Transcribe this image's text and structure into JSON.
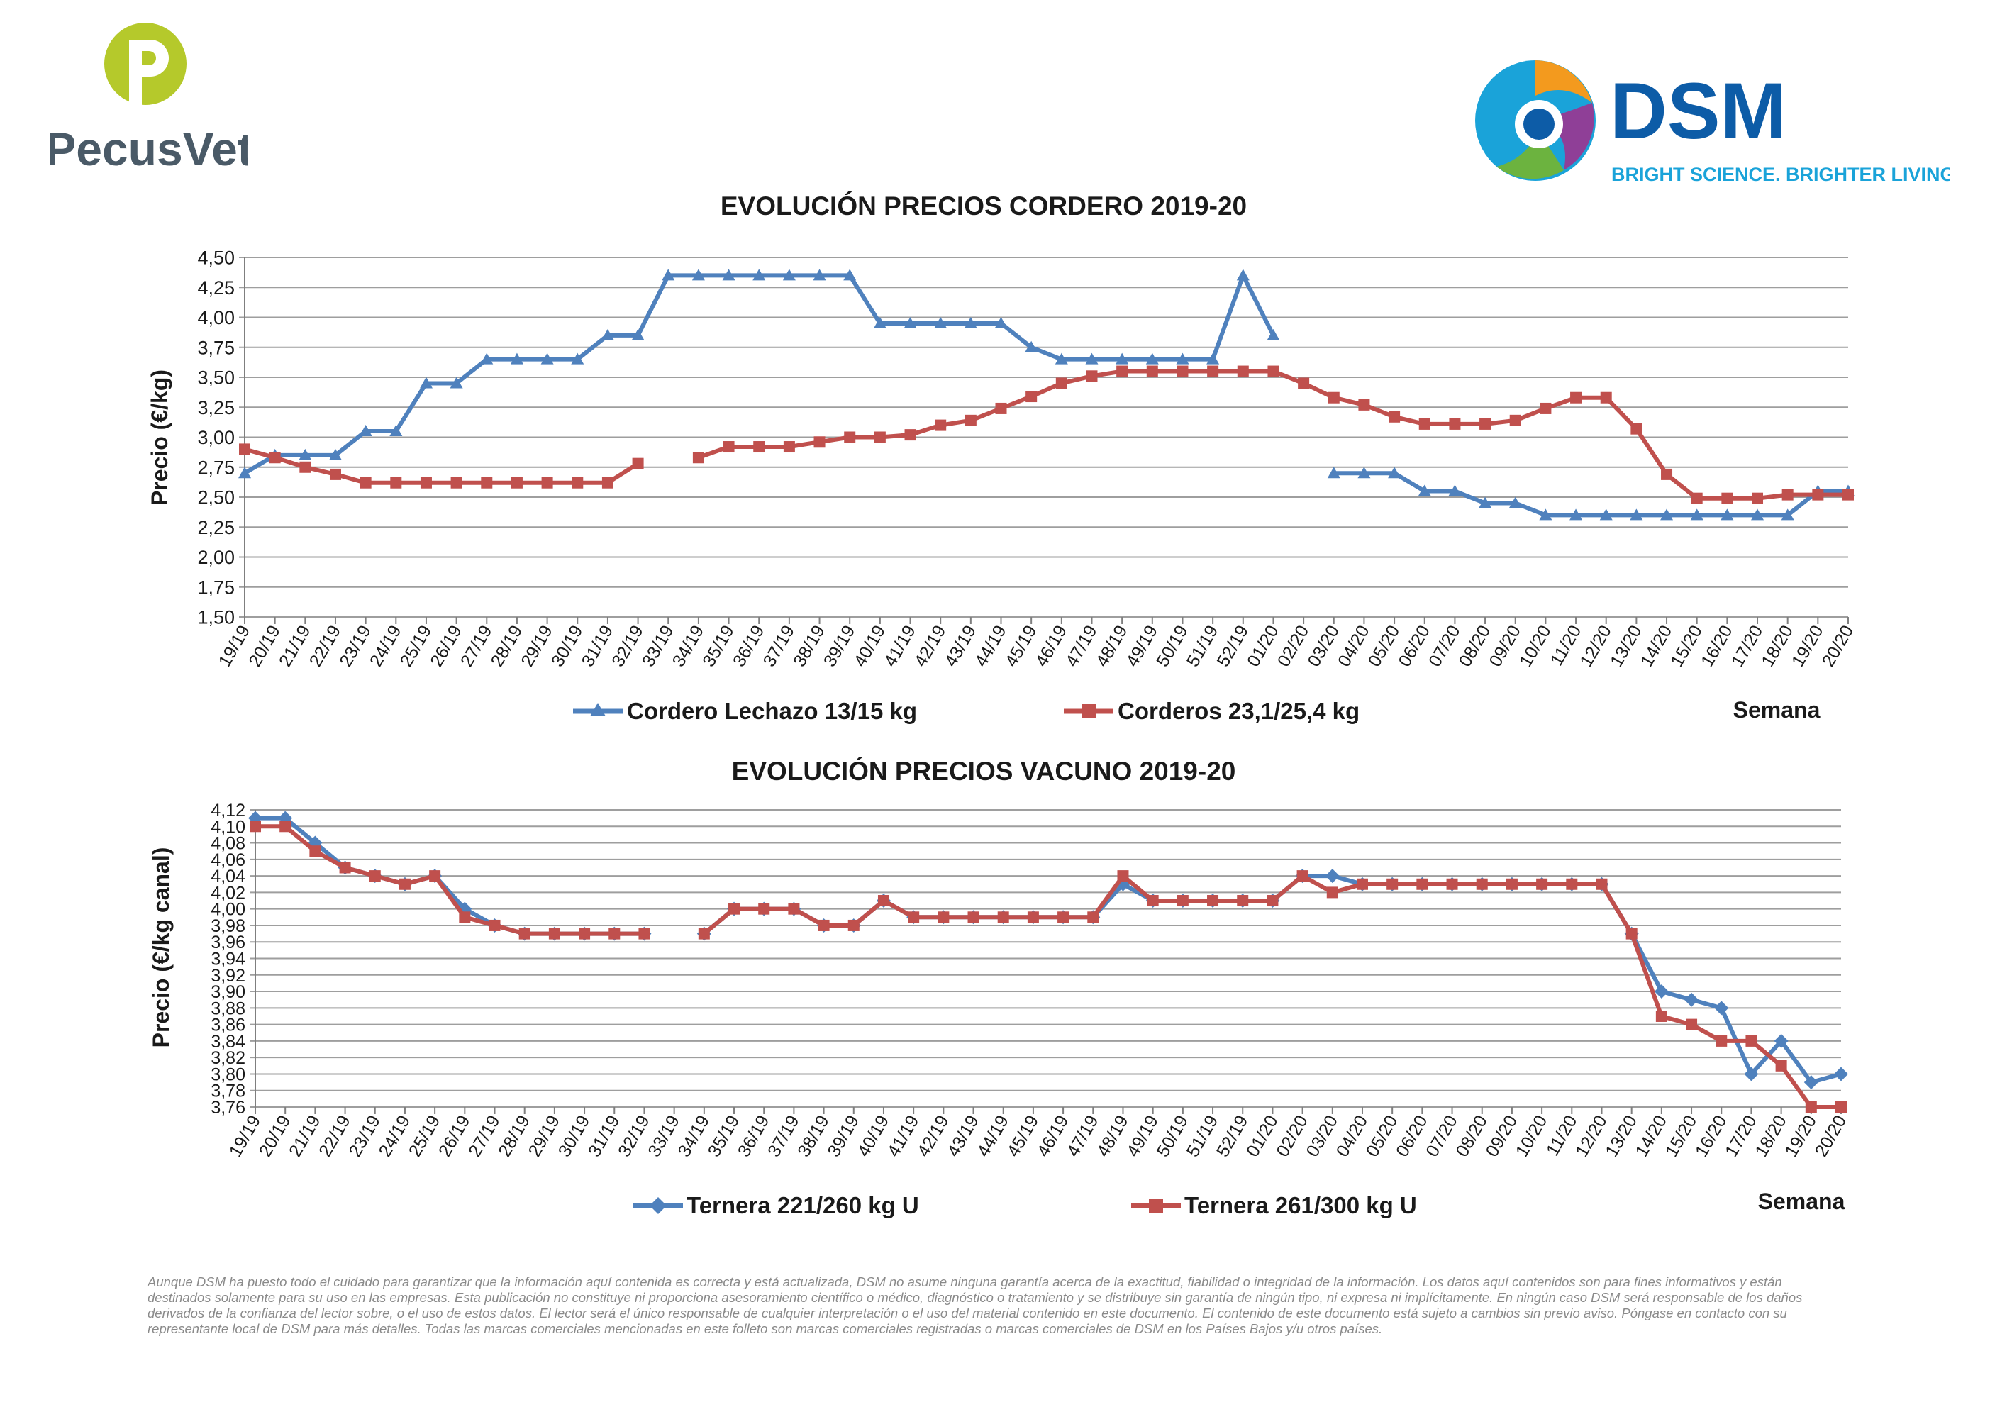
{
  "logos": {
    "left_brand": "PecusVet",
    "right_brand": "DSM",
    "right_tagline": "BRIGHT SCIENCE. BRIGHTER LIVING."
  },
  "colors": {
    "blue": "#4F81BD",
    "red": "#C0504D",
    "grid": "#9e9e9e",
    "logo_green": "#b5c92b",
    "logo_gray": "#4a5a67",
    "dsm_blue": "#0d5ca7"
  },
  "chart_data": [
    {
      "type": "line",
      "title": "EVOLUCIÓN PRECIOS CORDERO 2019-20",
      "xlabel": "Semana",
      "ylabel": "Precio (€/kg)",
      "ylim": [
        1.5,
        4.5
      ],
      "yticks": [
        "1,50",
        "1,75",
        "2,00",
        "2,25",
        "2,50",
        "2,75",
        "3,00",
        "3,25",
        "3,50",
        "3,75",
        "4,00",
        "4,25",
        "4,50"
      ],
      "grid": true,
      "legend_position": "bottom",
      "x": [
        "19/19",
        "20/19",
        "21/19",
        "22/19",
        "23/19",
        "24/19",
        "25/19",
        "26/19",
        "27/19",
        "28/19",
        "29/19",
        "30/19",
        "31/19",
        "32/19",
        "33/19",
        "34/19",
        "35/19",
        "36/19",
        "37/19",
        "38/19",
        "39/19",
        "40/19",
        "41/19",
        "42/19",
        "43/19",
        "44/19",
        "45/19",
        "46/19",
        "47/19",
        "48/19",
        "49/19",
        "50/19",
        "51/19",
        "52/19",
        "01/20",
        "02/20",
        "03/20",
        "04/20",
        "05/20",
        "06/20",
        "07/20",
        "08/20",
        "09/20",
        "10/20",
        "11/20",
        "12/20",
        "13/20",
        "14/20",
        "15/20",
        "16/20",
        "17/20",
        "18/20",
        "19/20",
        "20/20"
      ],
      "series": [
        {
          "name": "Cordero Lechazo 13/15 kg",
          "color": "#4F81BD",
          "marker": "triangle",
          "values": [
            2.7,
            2.85,
            2.85,
            2.85,
            3.05,
            3.05,
            3.45,
            3.45,
            3.65,
            3.65,
            3.65,
            3.65,
            3.85,
            3.85,
            4.35,
            4.35,
            4.35,
            4.35,
            4.35,
            4.35,
            4.35,
            3.95,
            3.95,
            3.95,
            3.95,
            3.95,
            3.75,
            3.65,
            3.65,
            3.65,
            3.65,
            3.65,
            3.65,
            4.35,
            3.85,
            null,
            2.7,
            2.7,
            2.7,
            2.55,
            2.55,
            2.45,
            2.45,
            2.35,
            2.35,
            2.35,
            2.35,
            2.35,
            2.35,
            2.35,
            2.35,
            2.35,
            2.55,
            2.55
          ]
        },
        {
          "name": "Corderos 23,1/25,4 kg",
          "color": "#C0504D",
          "marker": "square",
          "values": [
            2.9,
            2.83,
            2.75,
            2.69,
            2.62,
            2.62,
            2.62,
            2.62,
            2.62,
            2.62,
            2.62,
            2.62,
            2.62,
            2.78,
            null,
            2.83,
            2.92,
            2.92,
            2.92,
            2.96,
            3.0,
            3.0,
            3.02,
            3.1,
            3.14,
            3.24,
            3.34,
            3.45,
            3.51,
            3.55,
            3.55,
            3.55,
            3.55,
            3.55,
            3.55,
            3.45,
            3.33,
            3.27,
            3.17,
            3.11,
            3.11,
            3.11,
            3.14,
            3.24,
            3.33,
            3.33,
            3.07,
            2.69,
            2.49,
            2.49,
            2.49,
            2.52,
            2.52,
            2.52
          ]
        }
      ]
    },
    {
      "type": "line",
      "title": "EVOLUCIÓN PRECIOS VACUNO 2019-20",
      "xlabel": "Semana",
      "ylabel": "Precio (€/kg canal)",
      "ylim": [
        3.76,
        4.12
      ],
      "yticks": [
        "3,76",
        "3,78",
        "3,80",
        "3,82",
        "3,84",
        "3,86",
        "3,88",
        "3,90",
        "3,92",
        "3,94",
        "3,96",
        "3,98",
        "4,00",
        "4,02",
        "4,04",
        "4,06",
        "4,08",
        "4,10",
        "4,12"
      ],
      "grid": true,
      "legend_position": "bottom",
      "x": [
        "19/19",
        "20/19",
        "21/19",
        "22/19",
        "23/19",
        "24/19",
        "25/19",
        "26/19",
        "27/19",
        "28/19",
        "29/19",
        "30/19",
        "31/19",
        "32/19",
        "33/19",
        "34/19",
        "35/19",
        "36/19",
        "37/19",
        "38/19",
        "39/19",
        "40/19",
        "41/19",
        "42/19",
        "43/19",
        "44/19",
        "45/19",
        "46/19",
        "47/19",
        "48/19",
        "49/19",
        "50/19",
        "51/19",
        "52/19",
        "01/20",
        "02/20",
        "03/20",
        "04/20",
        "05/20",
        "06/20",
        "07/20",
        "08/20",
        "09/20",
        "10/20",
        "11/20",
        "12/20",
        "13/20",
        "14/20",
        "15/20",
        "16/20",
        "17/20",
        "18/20",
        "19/20",
        "20/20"
      ],
      "series": [
        {
          "name": "Ternera 221/260 kg U",
          "color": "#4F81BD",
          "marker": "diamond",
          "values": [
            4.11,
            4.11,
            4.08,
            4.05,
            4.04,
            4.03,
            4.04,
            4.0,
            3.98,
            3.97,
            3.97,
            3.97,
            3.97,
            3.97,
            null,
            3.97,
            4.0,
            4.0,
            4.0,
            3.98,
            3.98,
            4.01,
            3.99,
            3.99,
            3.99,
            3.99,
            3.99,
            3.99,
            3.99,
            4.03,
            4.01,
            4.01,
            4.01,
            4.01,
            4.01,
            4.04,
            4.04,
            4.03,
            4.03,
            4.03,
            4.03,
            4.03,
            4.03,
            4.03,
            4.03,
            4.03,
            3.97,
            3.9,
            3.89,
            3.88,
            3.8,
            3.84,
            3.79,
            3.8
          ]
        },
        {
          "name": "Ternera 261/300 kg U",
          "color": "#C0504D",
          "marker": "square",
          "values": [
            4.1,
            4.1,
            4.07,
            4.05,
            4.04,
            4.03,
            4.04,
            3.99,
            3.98,
            3.97,
            3.97,
            3.97,
            3.97,
            3.97,
            null,
            3.97,
            4.0,
            4.0,
            4.0,
            3.98,
            3.98,
            4.01,
            3.99,
            3.99,
            3.99,
            3.99,
            3.99,
            3.99,
            3.99,
            4.04,
            4.01,
            4.01,
            4.01,
            4.01,
            4.01,
            4.04,
            4.02,
            4.03,
            4.03,
            4.03,
            4.03,
            4.03,
            4.03,
            4.03,
            4.03,
            4.03,
            3.97,
            3.87,
            3.86,
            3.84,
            3.84,
            3.81,
            3.76,
            3.76
          ]
        }
      ]
    }
  ],
  "disclaimer": "Aunque DSM ha puesto todo el cuidado para garantizar que la información aquí contenida es correcta y está actualizada, DSM no asume ninguna garantía acerca de la exactitud, fiabilidad o integridad de la información. Los datos aquí contenidos son para fines informativos y están destinados solamente para su uso en las empresas. Esta publicación no constituye ni proporciona asesoramiento científico o médico, diagnóstico o tratamiento y se distribuye sin garantía de ningún tipo, ni expresa ni implícitamente. En ningún caso DSM será responsable de los daños derivados de la confianza del lector sobre, o el uso de estos datos. El lector será el único responsable de cualquier interpretación o el uso del material contenido en este documento. El contenido de este documento está sujeto a cambios sin previo aviso. Póngase en contacto con su representante local de DSM para más detalles. Todas las marcas comerciales mencionadas en este folleto son marcas comerciales registradas o marcas comerciales de DSM en los Países Bajos y/u otros países."
}
